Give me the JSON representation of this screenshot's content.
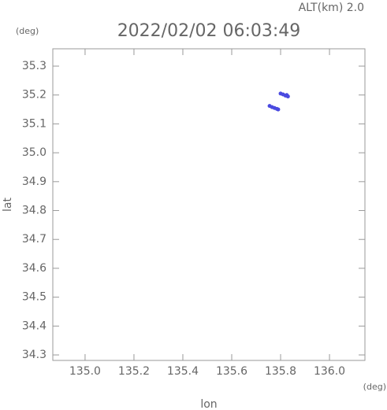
{
  "chart_data": {
    "type": "scatter",
    "title": "2022/02/02 06:03:49",
    "subtitle": "ALT(km) 2.0",
    "x_label": "lon",
    "x_unit": "(deg)",
    "y_label": "lat",
    "y_unit": "(deg)",
    "color": "#4a4ae0",
    "x": [
      135.8,
      135.81,
      135.82,
      135.83,
      135.825,
      135.755,
      135.765,
      135.775,
      135.785,
      135.79
    ],
    "y": [
      35.205,
      35.202,
      35.198,
      35.195,
      35.2,
      35.162,
      35.158,
      35.155,
      35.152,
      35.15
    ],
    "xlim": [
      134.868,
      136.145
    ],
    "ylim": [
      34.281,
      35.36
    ],
    "xticks": [
      {
        "value": 135,
        "label": "135.0"
      },
      135.2,
      135.4,
      135.6,
      135.8,
      {
        "value": 136,
        "label": "136.0"
      }
    ],
    "yticks": [
      34.3,
      34.4,
      34.5,
      34.6,
      34.7,
      34.8,
      34.9,
      {
        "value": 35,
        "label": "35.0"
      },
      35.1,
      35.2,
      35.3
    ]
  }
}
